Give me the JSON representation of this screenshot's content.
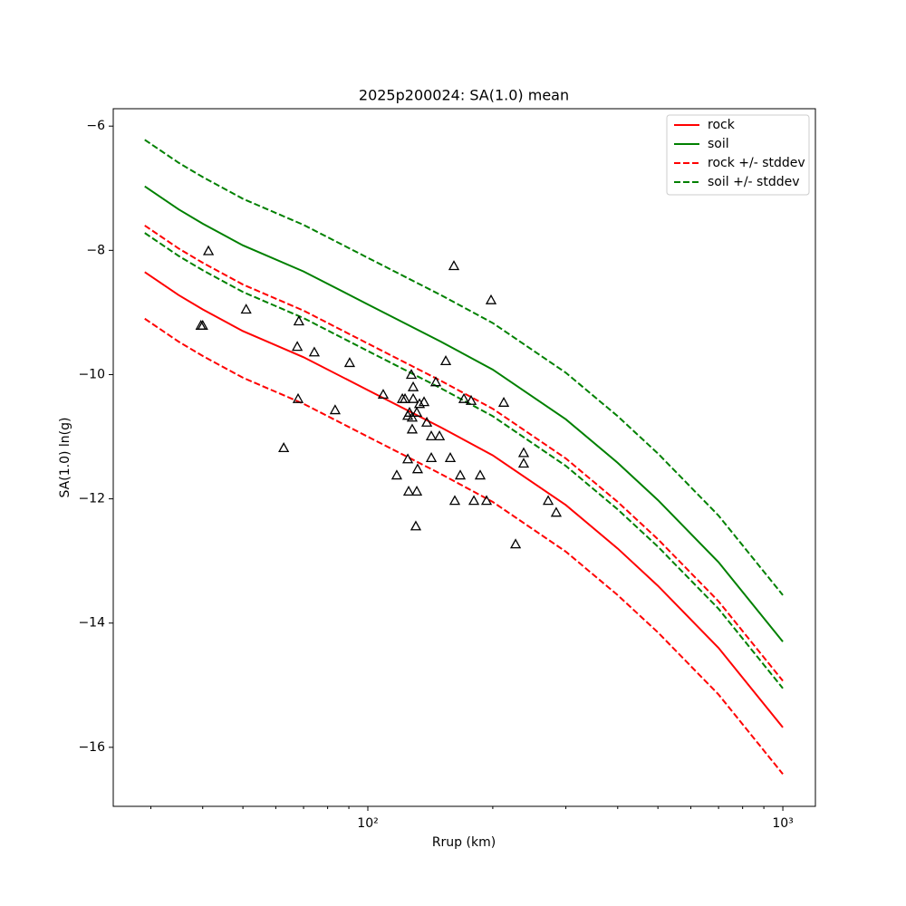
{
  "chart_data": {
    "type": "line",
    "title": "2025p200024: SA(1.0) mean",
    "xlabel": "Rrup (km)",
    "ylabel": "SA(1.0) ln(g)",
    "xscale": "log",
    "xlim": [
      24.35,
      1198
    ],
    "ylim": [
      -16.95,
      -5.72
    ],
    "xticks": [
      {
        "value": 100,
        "label": "10²"
      },
      {
        "value": 1000,
        "label": "10³"
      }
    ],
    "xminorticks": [
      30,
      40,
      50,
      60,
      70,
      80,
      90,
      200,
      300,
      400,
      500,
      600,
      700,
      800,
      900
    ],
    "yticks": [
      {
        "value": -16,
        "label": "−16"
      },
      {
        "value": -14,
        "label": "−14"
      },
      {
        "value": -12,
        "label": "−12"
      },
      {
        "value": -10,
        "label": "−10"
      },
      {
        "value": -8,
        "label": "−8"
      },
      {
        "value": -6,
        "label": "−6"
      }
    ],
    "grid": false,
    "legend": "upper right",
    "x": [
      29,
      35,
      40,
      50,
      70,
      100,
      150,
      200,
      300,
      400,
      500,
      700,
      1000
    ],
    "series": [
      {
        "name": "rock",
        "color": "#ff0000",
        "style": "solid",
        "lines": [
          [
            -8.35,
            -8.72,
            -8.95,
            -9.3,
            -9.72,
            -10.25,
            -10.85,
            -11.3,
            -12.1,
            -12.8,
            -13.4,
            -14.4,
            -15.68
          ]
        ]
      },
      {
        "name": "soil",
        "color": "#008000",
        "style": "solid",
        "lines": [
          [
            -6.97,
            -7.34,
            -7.57,
            -7.92,
            -8.34,
            -8.87,
            -9.47,
            -9.92,
            -10.72,
            -11.42,
            -12.02,
            -13.02,
            -14.3
          ]
        ]
      },
      {
        "name": "rock +/- stddev",
        "color": "#ff0000",
        "style": "dashed",
        "lines": [
          [
            -7.6,
            -7.97,
            -8.2,
            -8.55,
            -8.97,
            -9.5,
            -10.1,
            -10.55,
            -11.35,
            -12.05,
            -12.65,
            -13.65,
            -14.93
          ],
          [
            -9.1,
            -9.47,
            -9.7,
            -10.05,
            -10.47,
            -11.0,
            -11.6,
            -12.05,
            -12.85,
            -13.55,
            -14.15,
            -15.15,
            -16.43
          ]
        ]
      },
      {
        "name": "soil +/- stddev",
        "color": "#008000",
        "style": "dashed",
        "lines": [
          [
            -6.22,
            -6.59,
            -6.82,
            -7.17,
            -7.59,
            -8.12,
            -8.72,
            -9.17,
            -9.97,
            -10.67,
            -11.27,
            -12.27,
            -13.55
          ],
          [
            -7.72,
            -8.09,
            -8.32,
            -8.67,
            -9.09,
            -9.62,
            -10.22,
            -10.67,
            -11.47,
            -12.17,
            -12.77,
            -13.77,
            -15.05
          ]
        ]
      }
    ],
    "points": {
      "color": "#000000",
      "marker": "triangle",
      "x": [
        41.3,
        39.6,
        40.0,
        50.9,
        68.2,
        67.6,
        74.3,
        67.9,
        62.7,
        83.4,
        90.4,
        108.9,
        117.4,
        121.1,
        122.9,
        124.8,
        124.8,
        125.4,
        126.0,
        127.3,
        127.9,
        128.6,
        128.6,
        127.9,
        130.5,
        131.2,
        131.2,
        131.8,
        133.2,
        136.6,
        138.7,
        142.2,
        142.2,
        145.8,
        148.8,
        154.1,
        158.0,
        161.2,
        162.0,
        167.0,
        170.4,
        177.4,
        180.1,
        186.5,
        193.2,
        198.1,
        212.6,
        227.0,
        237.4,
        237.4,
        272.0,
        284.4
      ],
      "y": [
        -8.01,
        -9.21,
        -9.21,
        -8.95,
        -9.14,
        -9.55,
        -9.64,
        -10.39,
        -11.18,
        -10.57,
        -9.81,
        -10.32,
        -11.62,
        -10.39,
        -10.39,
        -10.66,
        -11.36,
        -11.88,
        -10.61,
        -10.0,
        -10.69,
        -10.2,
        -10.39,
        -10.88,
        -12.44,
        -10.61,
        -11.88,
        -11.52,
        -10.47,
        -10.44,
        -10.77,
        -10.99,
        -11.34,
        -10.12,
        -10.99,
        -9.78,
        -11.34,
        -8.25,
        -12.03,
        -11.62,
        -10.39,
        -10.42,
        -12.03,
        -11.62,
        -12.03,
        -8.8,
        -10.45,
        -12.73,
        -11.26,
        -11.43,
        -12.03,
        -12.22
      ]
    }
  }
}
